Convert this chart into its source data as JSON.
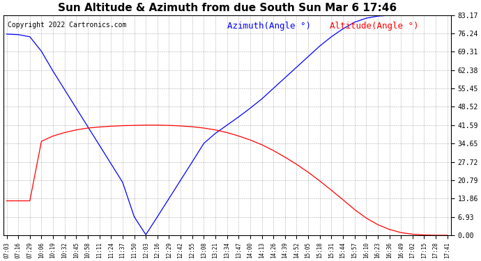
{
  "title": "Sun Altitude & Azimuth from due South Sun Mar 6 17:46",
  "copyright": "Copyright 2022 Cartronics.com",
  "legend_azimuth": "Azimuth(Angle °)",
  "legend_altitude": "Altitude(Angle °)",
  "x_labels": [
    "07:03",
    "07:16",
    "07:29",
    "10:06",
    "10:19",
    "10:32",
    "10:45",
    "10:58",
    "11:11",
    "11:24",
    "11:37",
    "11:50",
    "12:03",
    "12:16",
    "12:29",
    "12:42",
    "12:55",
    "13:08",
    "13:21",
    "13:34",
    "13:47",
    "14:00",
    "14:13",
    "14:26",
    "14:39",
    "14:52",
    "15:05",
    "15:18",
    "15:31",
    "15:44",
    "15:57",
    "16:10",
    "16:23",
    "16:36",
    "16:49",
    "17:02",
    "17:15",
    "17:28",
    "17:41"
  ],
  "azimuth_color": "#0000FF",
  "altitude_color": "#FF0000",
  "background_color": "#FFFFFF",
  "grid_color": "#999999",
  "y_ticks": [
    0.0,
    6.93,
    13.86,
    20.79,
    27.72,
    34.65,
    41.59,
    48.52,
    55.45,
    62.38,
    69.31,
    76.24,
    83.17
  ],
  "ylim": [
    0,
    83.17
  ],
  "title_color": "#000000",
  "copyright_color": "#000000",
  "title_fontsize": 11,
  "copyright_fontsize": 7,
  "legend_fontsize": 9,
  "azimuth_values": [
    76.0,
    75.8,
    75.0,
    69.5,
    62.0,
    55.0,
    48.0,
    41.0,
    34.0,
    27.0,
    20.0,
    7.0,
    0.2,
    7.0,
    13.9,
    20.8,
    27.7,
    34.7,
    38.5,
    41.6,
    44.7,
    48.0,
    51.5,
    55.5,
    59.5,
    63.5,
    67.5,
    71.5,
    75.0,
    78.0,
    80.5,
    82.0,
    82.8,
    83.1,
    83.17,
    83.17,
    83.17,
    83.17,
    83.17
  ],
  "altitude_values": [
    13.0,
    13.0,
    13.0,
    35.5,
    37.5,
    38.8,
    39.8,
    40.5,
    40.9,
    41.2,
    41.4,
    41.5,
    41.6,
    41.6,
    41.5,
    41.3,
    41.0,
    40.5,
    39.8,
    38.8,
    37.5,
    36.0,
    34.2,
    32.0,
    29.5,
    26.8,
    23.8,
    20.5,
    17.0,
    13.4,
    9.7,
    6.5,
    4.0,
    2.2,
    1.0,
    0.4,
    0.1,
    0.0,
    0.0
  ]
}
